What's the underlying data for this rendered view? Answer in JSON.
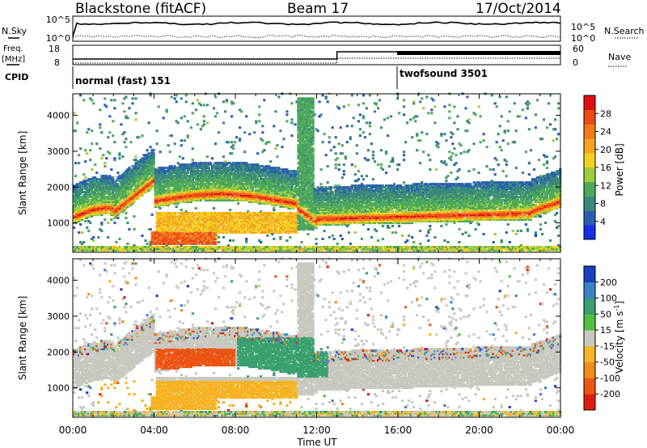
{
  "header": {
    "station": "Blackstone (fitACF)",
    "beam": "Beam 17",
    "date": "17/Oct/2014"
  },
  "top_panels": {
    "nsky_label": "N.Sky",
    "nsky_ticks": [
      "10^5",
      "10^0"
    ],
    "nsearch_label": "N.Search",
    "freq_label_1": "Freq.",
    "freq_label_2": "[MHz]",
    "freq_ticks": [
      "18",
      "8"
    ],
    "nave_label": "Nave",
    "nave_ticks": [
      "60",
      "0"
    ],
    "cpid_label": "CPID",
    "cpid_segments": [
      {
        "name": "normal (fast) 151",
        "start_hour": 0
      },
      {
        "name": "twofsound 3501",
        "start_hour": 16
      }
    ]
  },
  "axes": {
    "xlabel": "Time UT",
    "xticks": [
      "00:00",
      "04:00",
      "08:00",
      "12:00",
      "16:00",
      "20:00",
      "00:00"
    ],
    "xtick_hours": [
      0,
      4,
      8,
      12,
      16,
      20,
      24
    ],
    "ylabel": "Slant Range [km]",
    "yticks": [
      "1000",
      "2000",
      "3000",
      "4000"
    ],
    "ytick_values": [
      1000,
      2000,
      3000,
      4000
    ]
  },
  "power_colorbar": {
    "label": "Power [dB]",
    "ticks": [
      "4",
      "8",
      "12",
      "16",
      "20",
      "24",
      "28"
    ],
    "colors": [
      "#1530e8",
      "#2a5fb0",
      "#3a8a7a",
      "#4ea85a",
      "#9ccd3a",
      "#f2d020",
      "#f5a322",
      "#f07a1a",
      "#ec4a16",
      "#e01010"
    ]
  },
  "velocity_colorbar": {
    "label": "Velocity [m s",
    "label_sup": "-1",
    "label_end": "]",
    "ticks": [
      "200",
      "100",
      "50",
      "15",
      "-15",
      "-50",
      "-100",
      "-200"
    ],
    "colors": [
      "#1a3fbf",
      "#3a82c8",
      "#3aa070",
      "#52c040",
      "#c8c8c0",
      "#f5b325",
      "#f08a18",
      "#ec5514",
      "#e01a10"
    ]
  },
  "chart_data": {
    "type": "heatmap",
    "title": "Blackstone (fitACF)  Beam 17  17/Oct/2014",
    "xlabel": "Time UT",
    "ylabel": "Slant Range [km]",
    "xlim": [
      0,
      24
    ],
    "ylim": [
      180,
      4600
    ],
    "panels": [
      {
        "name": "Power",
        "unit": "dB",
        "range": [
          0,
          30
        ]
      },
      {
        "name": "Velocity",
        "unit": "m s-1",
        "range": [
          -200,
          200
        ]
      }
    ]
  }
}
